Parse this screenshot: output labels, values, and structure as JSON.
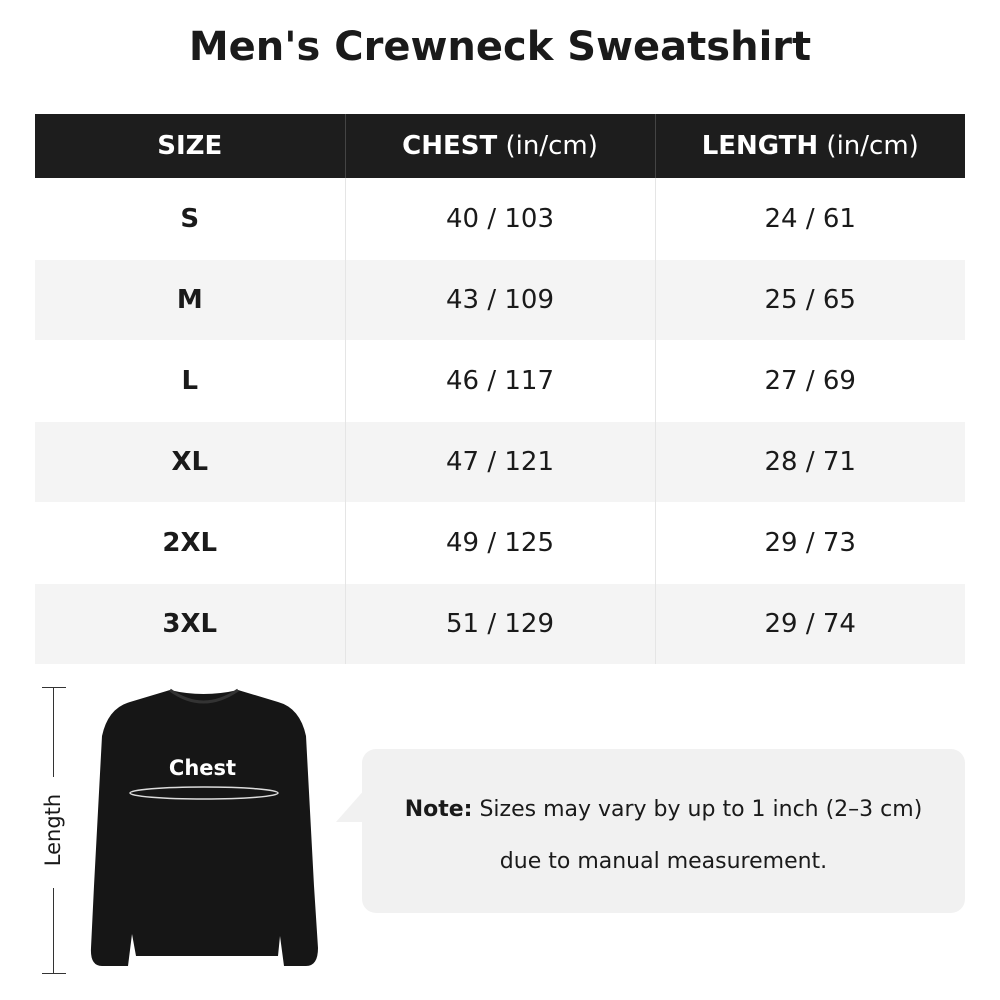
{
  "title": "Men's Crewneck Sweatshirt",
  "table": {
    "headers": [
      {
        "label": "SIZE",
        "unit": ""
      },
      {
        "label": "CHEST",
        "unit": " (in/cm)"
      },
      {
        "label": "LENGTH",
        "unit": " (in/cm)"
      }
    ],
    "rows": [
      {
        "size": "S",
        "chest": "40 / 103",
        "length": "24 / 61"
      },
      {
        "size": "M",
        "chest": "43 / 109",
        "length": "25 / 65"
      },
      {
        "size": "L",
        "chest": "46 / 117",
        "length": "27 / 69"
      },
      {
        "size": "XL",
        "chest": "47 / 121",
        "length": "28 / 71"
      },
      {
        "size": "2XL",
        "chest": "49 / 125",
        "length": "29 / 73"
      },
      {
        "size": "3XL",
        "chest": "51 / 129",
        "length": "29 / 74"
      }
    ]
  },
  "diagram": {
    "length_label": "Length",
    "chest_label": "Chest"
  },
  "note": {
    "label": "Note:",
    "line1": " Sizes may vary by up to 1 inch (2–3 cm)",
    "line2": "due to manual measurement."
  }
}
